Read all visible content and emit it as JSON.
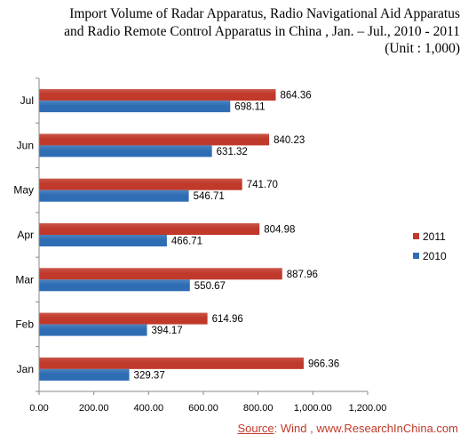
{
  "chart_data": {
    "type": "bar",
    "orientation": "horizontal",
    "title": [
      "Import Volume of Radar Apparatus, Radio Navigational Aid Apparatus",
      "and Radio Remote Control Apparatus in China , Jan. – Jul., 2010 - 2011",
      "(Unit : 1,000)"
    ],
    "categories": [
      "Jul",
      "Jun",
      "May",
      "Apr",
      "Mar",
      "Feb",
      "Jan"
    ],
    "series": [
      {
        "name": "2011",
        "color": "#c0392b",
        "values": [
          864.36,
          840.23,
          741.7,
          804.98,
          887.96,
          614.96,
          966.36
        ],
        "labels": [
          "864.36",
          "840.23",
          "741.70",
          "804.98",
          "887.96",
          "614.96",
          "966.36"
        ]
      },
      {
        "name": "2010",
        "color": "#2e6db4",
        "values": [
          698.11,
          631.32,
          546.71,
          466.71,
          550.67,
          394.17,
          329.37
        ],
        "labels": [
          "698.11",
          "631.32",
          "546.71",
          "466.71",
          "550.67",
          "394.17",
          "329.37"
        ]
      }
    ],
    "xlim": [
      0,
      1200
    ],
    "xticks": [
      0,
      200,
      400,
      600,
      800,
      1000,
      1200
    ],
    "xtick_labels": [
      "0.00",
      "200.00",
      "400.00",
      "600.00",
      "800.00",
      "1,000.00",
      "1,200.00"
    ],
    "grid": false,
    "legend": [
      "2011",
      "2010"
    ],
    "legend_placement": "right"
  },
  "source": {
    "label": "Source",
    "text": ": Wind , www.ResearchInChina.com"
  }
}
